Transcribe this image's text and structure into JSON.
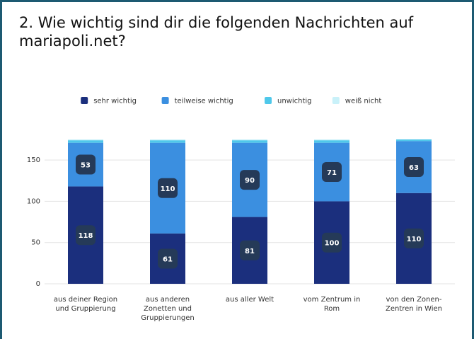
{
  "chart_data": {
    "type": "stacked_bar",
    "title": "2. Wie wichtig sind dir die folgenden Nachrichten auf mariapoli.net?",
    "categories": [
      "aus deiner Region und Gruppierung",
      "aus anderen Zonetten und Gruppierungen",
      "aus aller Welt",
      "vom Zentrum in Rom",
      "von den Zonen-Zentren in Wien"
    ],
    "series": [
      {
        "name": "sehr wichtig",
        "color": "#1b2f7d",
        "values": [
          118,
          61,
          81,
          100,
          110
        ]
      },
      {
        "name": "teilweise wichtig",
        "color": "#3b8fe0",
        "values": [
          53,
          110,
          90,
          71,
          63
        ]
      },
      {
        "name": "unwichtig",
        "color": "#4fc8ea",
        "values": [
          3,
          3,
          3,
          3,
          2
        ]
      },
      {
        "name": "weiß nicht",
        "color": "#c9f1f9",
        "values": [
          1,
          1,
          1,
          1,
          0
        ]
      }
    ],
    "ylim": [
      0,
      175
    ],
    "yticks": [
      0,
      50,
      100,
      150
    ],
    "grid": true,
    "legend": "top"
  }
}
